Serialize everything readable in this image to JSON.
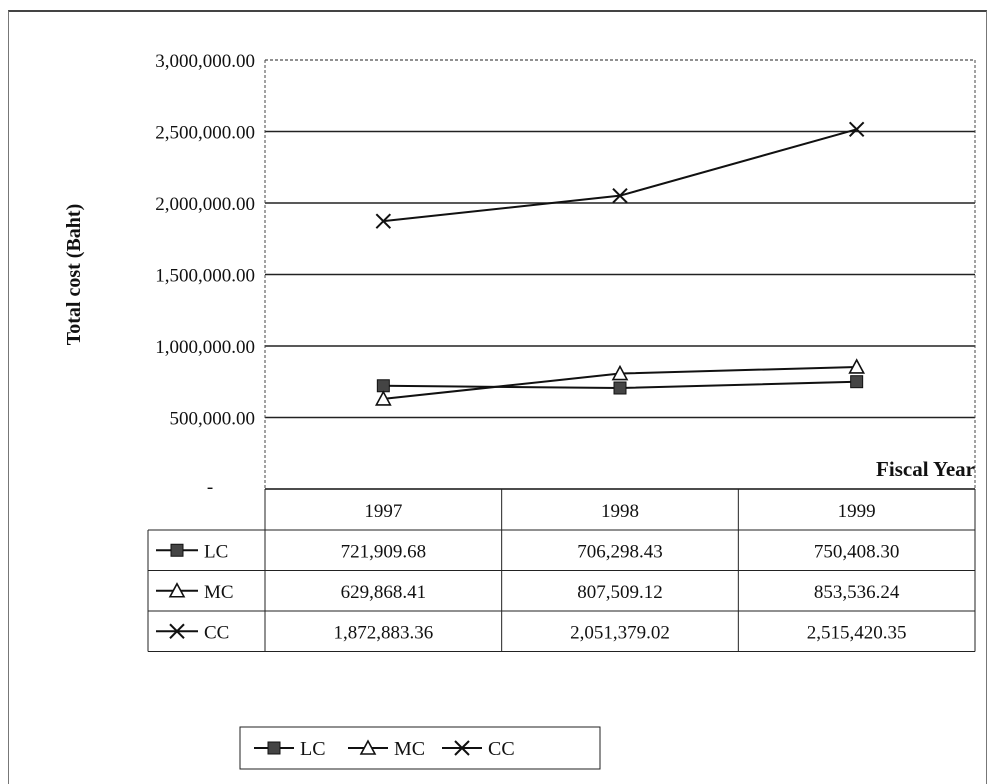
{
  "chart_data": {
    "type": "line",
    "title": "",
    "xlabel": "Fiscal Year",
    "ylabel": "Total cost (Baht)",
    "categories": [
      "1997",
      "1998",
      "1999"
    ],
    "ylim": [
      0,
      3000000
    ],
    "yticks": [
      0,
      500000,
      1000000,
      1500000,
      2000000,
      2500000,
      3000000
    ],
    "ytick_labels": [
      "-",
      "500,000.00",
      "1,000,000.00",
      "1,500,000.00",
      "2,000,000.00",
      "2,500,000.00",
      "3,000,000.00"
    ],
    "grid": true,
    "series": [
      {
        "name": "LC",
        "marker": "square",
        "values": [
          721909.68,
          706298.43,
          750408.3
        ],
        "labels": [
          "721,909.68",
          "706,298.43",
          "750,408.30"
        ]
      },
      {
        "name": "MC",
        "marker": "triangle",
        "values": [
          629868.41,
          807509.12,
          853536.24
        ],
        "labels": [
          "629,868.41",
          "807,509.12",
          "853,536.24"
        ]
      },
      {
        "name": "CC",
        "marker": "x",
        "values": [
          1872883.36,
          2051379.02,
          2515420.35
        ],
        "labels": [
          "1,872,883.36",
          "2,051,379.02",
          "2,515,420.35"
        ]
      }
    ],
    "data_table": true,
    "legend_position": "bottom"
  }
}
